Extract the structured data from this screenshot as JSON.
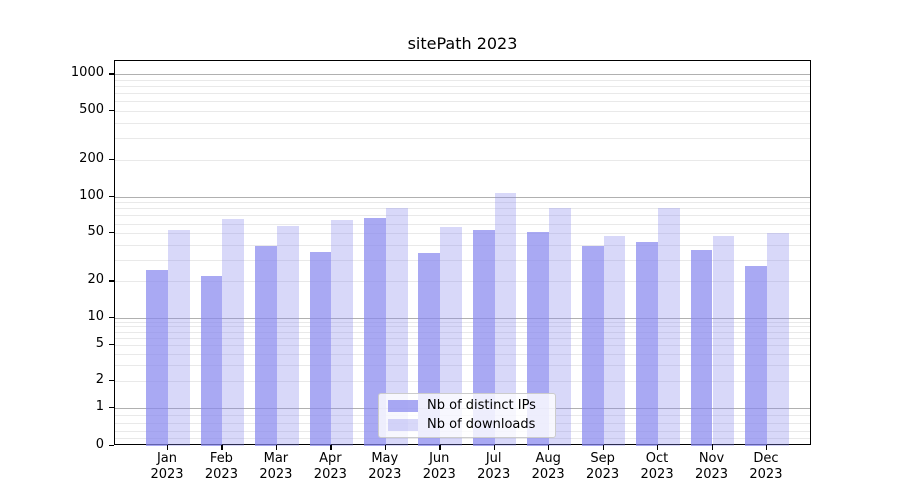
{
  "chart_data": {
    "type": "bar",
    "title": "sitePath 2023",
    "scale": "symlog",
    "grid": "both",
    "legend_position": "lower center",
    "categories": [
      "Jan 2023",
      "Feb 2023",
      "Mar 2023",
      "Apr 2023",
      "May 2023",
      "Jun 2023",
      "Jul 2023",
      "Aug 2023",
      "Sep 2023",
      "Oct 2023",
      "Nov 2023",
      "Dec 2023"
    ],
    "series": [
      {
        "name": "Nb of distinct IPs",
        "color": "rgba(136,136,238,0.72)",
        "values": [
          25,
          22,
          39,
          35,
          67,
          34,
          53,
          51,
          39,
          42,
          36,
          27
        ]
      },
      {
        "name": "Nb of downloads",
        "color": "rgba(136,136,238,0.33)",
        "values": [
          53,
          66,
          57,
          64,
          80,
          56,
          108,
          80,
          47,
          80,
          47,
          50
        ]
      }
    ],
    "yticks": [
      0,
      1,
      2,
      5,
      10,
      20,
      50,
      100,
      200,
      500,
      1000
    ],
    "ytick_labels": [
      "0",
      "1",
      "2",
      "5",
      "10",
      "20",
      "50",
      "100",
      "200",
      "500",
      "1000"
    ],
    "ylim": [
      0,
      1300
    ],
    "colors": {
      "axis": "#000000",
      "major_grid": "#b0b0b0",
      "minor_grid": "#e9e9e9"
    }
  }
}
